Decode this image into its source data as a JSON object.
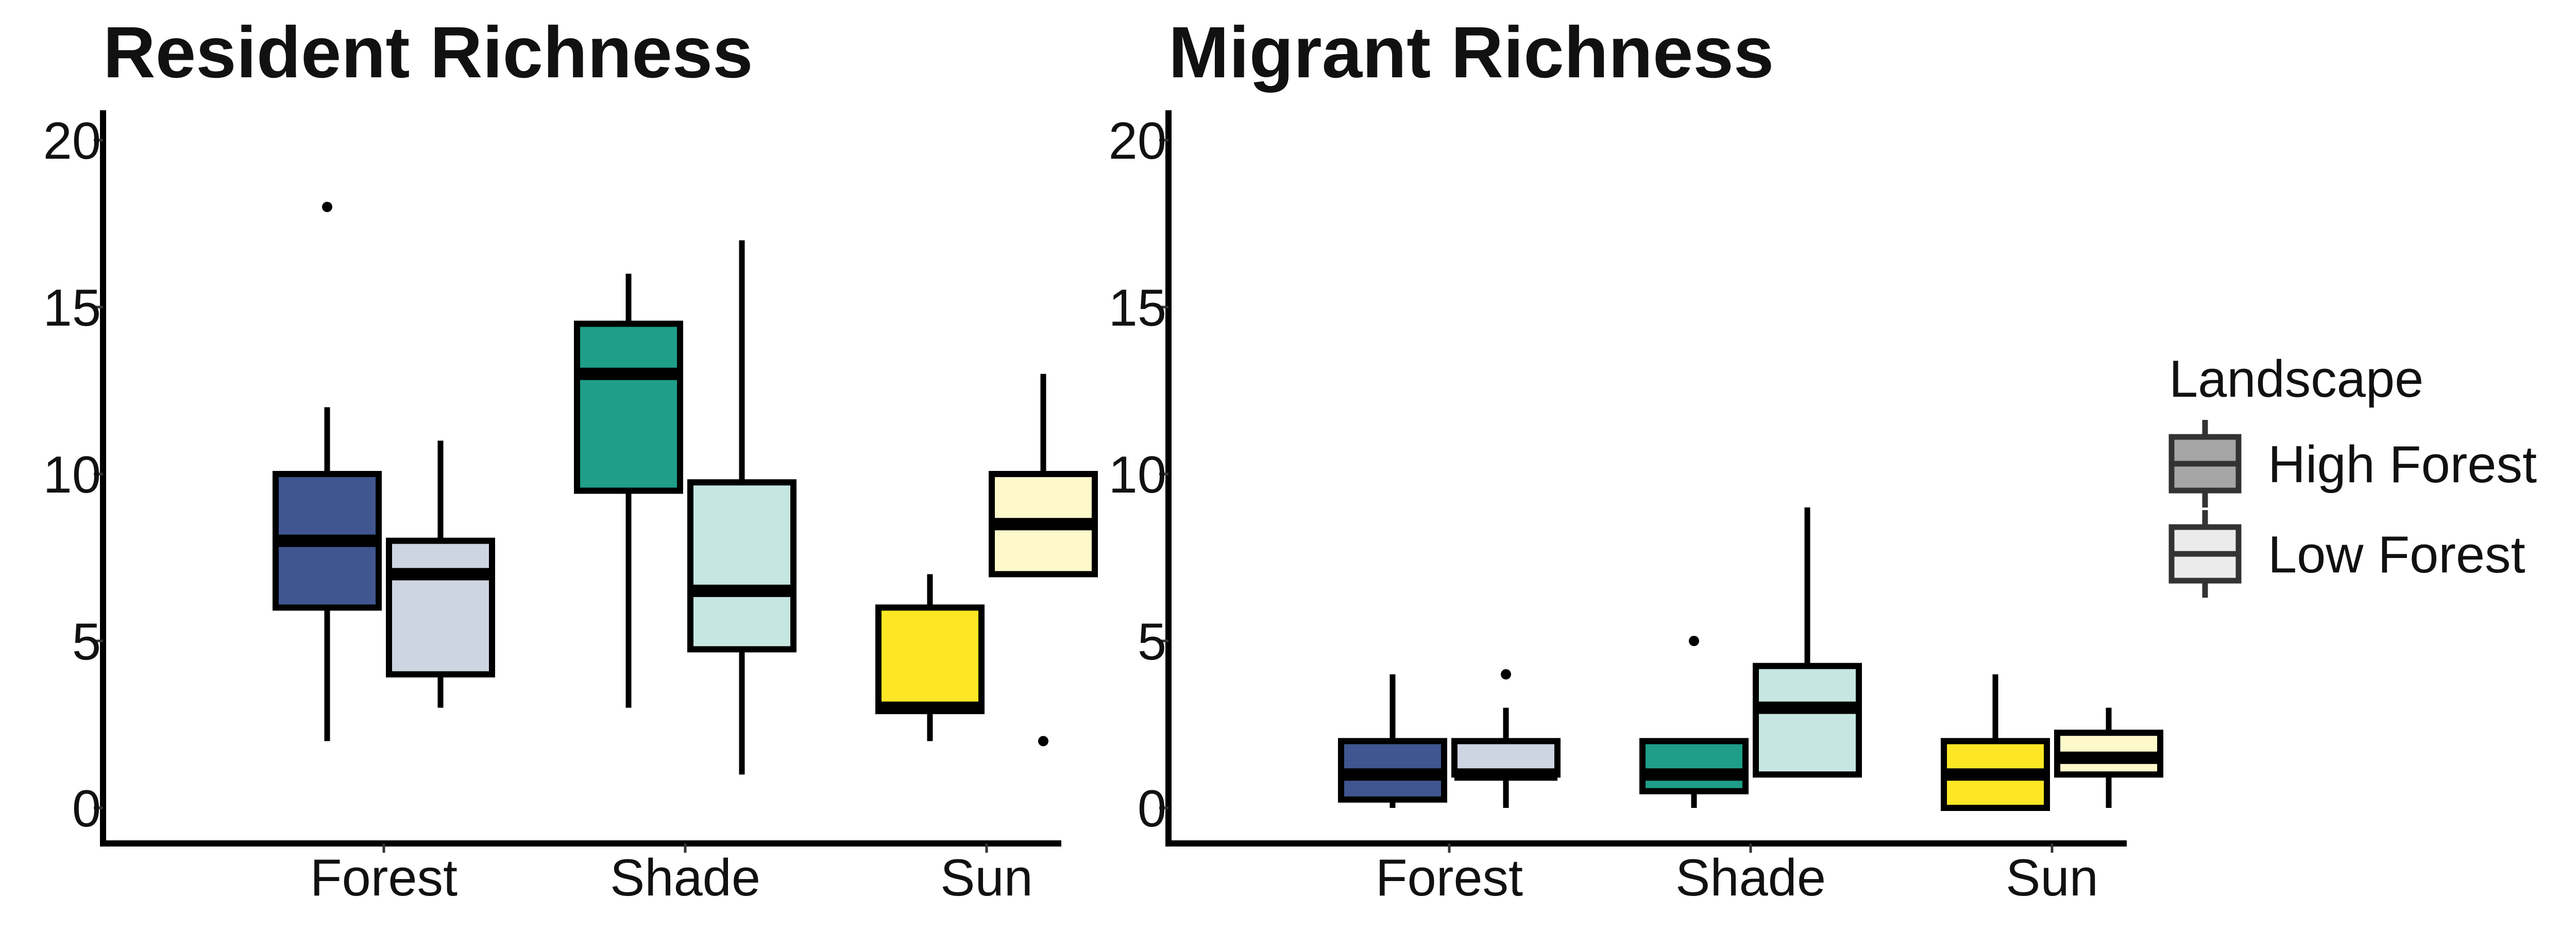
{
  "chart_data": [
    {
      "type": "box",
      "title": "Resident Richness",
      "xlabel": "",
      "ylabel": "",
      "ylim": [
        0,
        20
      ],
      "yticks": [
        0,
        5,
        10,
        15,
        20
      ],
      "categories": [
        "Forest",
        "Shade",
        "Sun"
      ],
      "groups": [
        {
          "category": "Forest",
          "landscape": "High Forest",
          "color": "#3F5690",
          "whisker_low": 2,
          "q1": 6,
          "median": 8,
          "q3": 10,
          "whisker_high": 12,
          "outliers": [
            18
          ]
        },
        {
          "category": "Forest",
          "landscape": "Low Forest",
          "color": "#CED5E2",
          "whisker_low": 3,
          "q1": 4,
          "median": 7,
          "q3": 8,
          "whisker_high": 11,
          "outliers": []
        },
        {
          "category": "Shade",
          "landscape": "High Forest",
          "color": "#1F9E89",
          "whisker_low": 3,
          "q1": 9.5,
          "median": 13,
          "q3": 14.5,
          "whisker_high": 16,
          "outliers": []
        },
        {
          "category": "Shade",
          "landscape": "Low Forest",
          "color": "#C6E6E1",
          "whisker_low": 1,
          "q1": 4.75,
          "median": 6.5,
          "q3": 9.75,
          "whisker_high": 17,
          "outliers": []
        },
        {
          "category": "Sun",
          "landscape": "High Forest",
          "color": "#FDE725",
          "whisker_low": 2,
          "q1": 2.9,
          "median": 3,
          "q3": 6,
          "whisker_high": 7,
          "outliers": []
        },
        {
          "category": "Sun",
          "landscape": "Low Forest",
          "color": "#FEF9CB",
          "whisker_low": 7,
          "q1": 7,
          "median": 8.5,
          "q3": 10,
          "whisker_high": 13,
          "outliers": [
            2
          ]
        }
      ]
    },
    {
      "type": "box",
      "title": "Migrant Richness",
      "xlabel": "",
      "ylabel": "",
      "ylim": [
        0,
        20
      ],
      "yticks": [
        0,
        5,
        10,
        15,
        20
      ],
      "categories": [
        "Forest",
        "Shade",
        "Sun"
      ],
      "groups": [
        {
          "category": "Forest",
          "landscape": "High Forest",
          "color": "#3F5690",
          "whisker_low": 0,
          "q1": 0.25,
          "median": 1,
          "q3": 2,
          "whisker_high": 4,
          "outliers": []
        },
        {
          "category": "Forest",
          "landscape": "Low Forest",
          "color": "#CED5E2",
          "whisker_low": 0,
          "q1": 1,
          "median": 1,
          "q3": 2,
          "whisker_high": 3,
          "outliers": [
            4
          ]
        },
        {
          "category": "Shade",
          "landscape": "High Forest",
          "color": "#1F9E89",
          "whisker_low": 0,
          "q1": 0.5,
          "median": 1,
          "q3": 2,
          "whisker_high": 2,
          "outliers": [
            5
          ]
        },
        {
          "category": "Shade",
          "landscape": "Low Forest",
          "color": "#C6E6E1",
          "whisker_low": 1,
          "q1": 1,
          "median": 3,
          "q3": 4.25,
          "whisker_high": 9,
          "outliers": []
        },
        {
          "category": "Sun",
          "landscape": "High Forest",
          "color": "#FDE725",
          "whisker_low": 0,
          "q1": 0,
          "median": 1,
          "q3": 2,
          "whisker_high": 4,
          "outliers": []
        },
        {
          "category": "Sun",
          "landscape": "Low Forest",
          "color": "#FEF9CB",
          "whisker_low": 0,
          "q1": 1,
          "median": 1.5,
          "q3": 2.25,
          "whisker_high": 3,
          "outliers": []
        }
      ]
    }
  ],
  "legend": {
    "title": "Landscape",
    "position": "right",
    "items": [
      {
        "label": "High Forest",
        "color": "#A6A6A6"
      },
      {
        "label": "Low Forest",
        "color": "#EBEBEB"
      }
    ]
  }
}
